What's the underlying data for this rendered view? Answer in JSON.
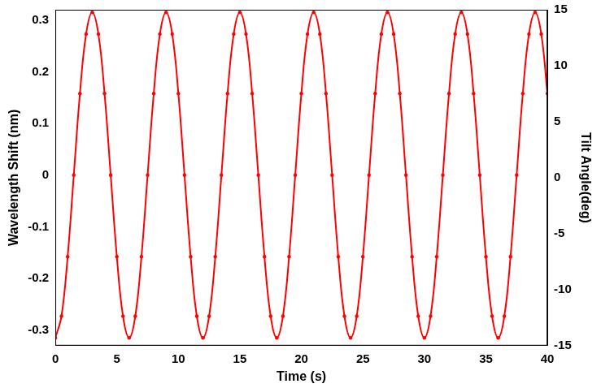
{
  "chart_data": {
    "type": "line",
    "x_label": "Time (s)",
    "y_label": "Wavelength Shift (nm)",
    "y2_label": "Tilt Angle(deg)",
    "x": [
      0,
      0.5,
      1,
      1.5,
      2,
      2.5,
      3,
      3.5,
      4,
      4.5,
      5,
      5.5,
      6,
      6.5,
      7,
      7.5,
      8,
      8.5,
      9,
      9.5,
      10,
      10.5,
      11,
      11.5,
      12,
      12.5,
      13,
      13.5,
      14,
      14.5,
      15,
      15.5,
      16,
      16.5,
      17,
      17.5,
      18,
      18.5,
      19,
      19.5,
      20,
      20.5,
      21,
      21.5,
      22,
      22.5,
      23,
      23.5,
      24,
      24.5,
      25,
      25.5,
      26,
      26.5,
      27,
      27.5,
      28,
      28.5,
      29,
      29.5,
      30,
      30.5,
      31,
      31.5,
      32,
      32.5,
      33,
      33.5,
      34,
      34.5,
      35,
      35.5,
      36,
      36.5,
      37,
      37.5,
      38,
      38.5,
      39,
      39.5,
      40
    ],
    "series": [
      {
        "name": "Wavelength Shift",
        "color": "#ff0000",
        "marker": "circle",
        "line_style": "solid",
        "values": [
          -0.315,
          -0.273,
          -0.158,
          0,
          0.158,
          0.273,
          0.315,
          0.273,
          0.158,
          0,
          -0.158,
          -0.273,
          -0.315,
          -0.273,
          -0.158,
          0,
          0.158,
          0.273,
          0.315,
          0.273,
          0.158,
          0,
          -0.158,
          -0.273,
          -0.315,
          -0.273,
          -0.158,
          0,
          0.158,
          0.273,
          0.315,
          0.273,
          0.158,
          0,
          -0.158,
          -0.273,
          -0.315,
          -0.273,
          -0.158,
          0,
          0.158,
          0.273,
          0.315,
          0.273,
          0.158,
          0,
          -0.158,
          -0.273,
          -0.315,
          -0.273,
          -0.158,
          0,
          0.158,
          0.273,
          0.315,
          0.273,
          0.158,
          0,
          -0.158,
          -0.273,
          -0.315,
          -0.273,
          -0.158,
          0,
          0.158,
          0.273,
          0.315,
          0.273,
          0.158,
          0,
          -0.158,
          -0.273,
          -0.315,
          -0.273,
          -0.158,
          0,
          0.158,
          0.273,
          0.315,
          0.273,
          0.158
        ]
      }
    ],
    "xlim": [
      0,
      40
    ],
    "xticks": [
      0,
      5,
      10,
      15,
      20,
      25,
      30,
      35,
      40
    ],
    "ylim": [
      -0.33,
      0.32
    ],
    "yticks": [
      -0.3,
      -0.2,
      -0.1,
      0,
      0.1,
      0.2,
      0.3
    ],
    "y2lim": [
      -15,
      15
    ],
    "y2ticks": [
      -15,
      -10,
      -5,
      0,
      5,
      10,
      15
    ],
    "grid": false
  }
}
